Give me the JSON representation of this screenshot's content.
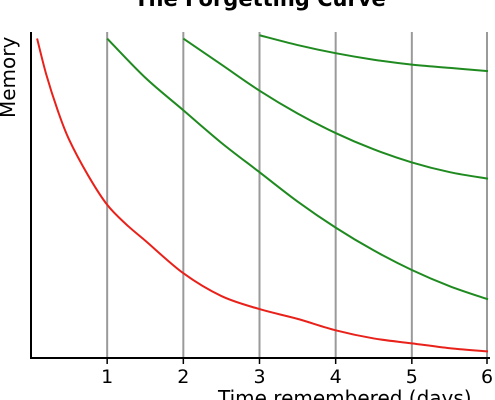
{
  "chart_data": {
    "type": "line",
    "title": "The Forgetting Curve",
    "xlabel": "Time remembered (days)",
    "ylabel": "Memory",
    "xlim": [
      0,
      6
    ],
    "ylim": [
      0,
      1
    ],
    "x_ticks": [
      "1",
      "2",
      "3",
      "4",
      "5",
      "6"
    ],
    "grid": "vertical lines at each day",
    "colors": {
      "initial": "#e8211a",
      "reviews": "#1f8a1f",
      "grid": "#9a9a9a",
      "axis": "#000000"
    },
    "series": [
      {
        "color": "#e8211a",
        "x": [
          0.08,
          0.2,
          0.35,
          0.5,
          0.75,
          1.0,
          1.25,
          1.5,
          2.0,
          2.5,
          3.0,
          3.5,
          4.0,
          4.5,
          5.0,
          5.5,
          6.0
        ],
        "y": [
          0.98,
          0.87,
          0.76,
          0.67,
          0.56,
          0.47,
          0.41,
          0.36,
          0.26,
          0.19,
          0.15,
          0.12,
          0.085,
          0.06,
          0.045,
          0.03,
          0.02
        ]
      },
      {
        "color": "#1f8a1f",
        "x": [
          1.0,
          1.5,
          2.0,
          2.5,
          3.0,
          3.5,
          4.0,
          4.5,
          5.0,
          5.5,
          6.0
        ],
        "y": [
          0.98,
          0.86,
          0.76,
          0.66,
          0.57,
          0.48,
          0.4,
          0.33,
          0.27,
          0.22,
          0.18
        ]
      },
      {
        "color": "#1f8a1f",
        "x": [
          2.0,
          2.5,
          3.0,
          3.5,
          4.0,
          4.5,
          5.0,
          5.5,
          6.0
        ],
        "y": [
          0.98,
          0.9,
          0.82,
          0.75,
          0.69,
          0.64,
          0.6,
          0.57,
          0.55
        ]
      },
      {
        "color": "#1f8a1f",
        "x": [
          3.0,
          3.5,
          4.0,
          4.5,
          5.0,
          5.5,
          6.0
        ],
        "y": [
          0.99,
          0.96,
          0.935,
          0.915,
          0.9,
          0.89,
          0.88
        ]
      }
    ]
  }
}
